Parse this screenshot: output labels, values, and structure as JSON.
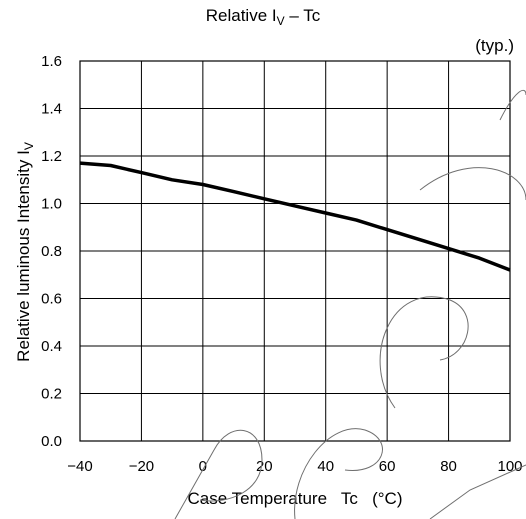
{
  "chart_data": {
    "type": "line",
    "title_main": "Relative I",
    "title_sub": "V",
    "title_tail": " – Tc",
    "note": "(typ.)",
    "xlabel": "Case Temperature   Tc   (°C)",
    "ylabel_main": "Relative luminous Intensity   I",
    "ylabel_sub": "V",
    "xlim": [
      -40,
      100
    ],
    "ylim": [
      0.0,
      1.6
    ],
    "x_ticks": [
      "−40",
      "−20",
      "0",
      "20",
      "40",
      "60",
      "80",
      "100"
    ],
    "x_tick_values": [
      -40,
      -20,
      0,
      20,
      40,
      60,
      80,
      100
    ],
    "y_ticks": [
      "0.0",
      "0.2",
      "0.4",
      "0.6",
      "0.8",
      "1.0",
      "1.2",
      "1.4",
      "1.6"
    ],
    "y_tick_values": [
      0.0,
      0.2,
      0.4,
      0.6,
      0.8,
      1.0,
      1.2,
      1.4,
      1.6
    ],
    "grid": true,
    "series": [
      {
        "x": [
          -40,
          -30,
          -20,
          -10,
          0,
          10,
          20,
          30,
          40,
          50,
          60,
          70,
          80,
          90,
          100
        ],
        "y": [
          1.17,
          1.16,
          1.13,
          1.1,
          1.08,
          1.05,
          1.02,
          0.99,
          0.96,
          0.93,
          0.89,
          0.85,
          0.81,
          0.77,
          0.72
        ]
      }
    ],
    "line_color": "#000000"
  }
}
